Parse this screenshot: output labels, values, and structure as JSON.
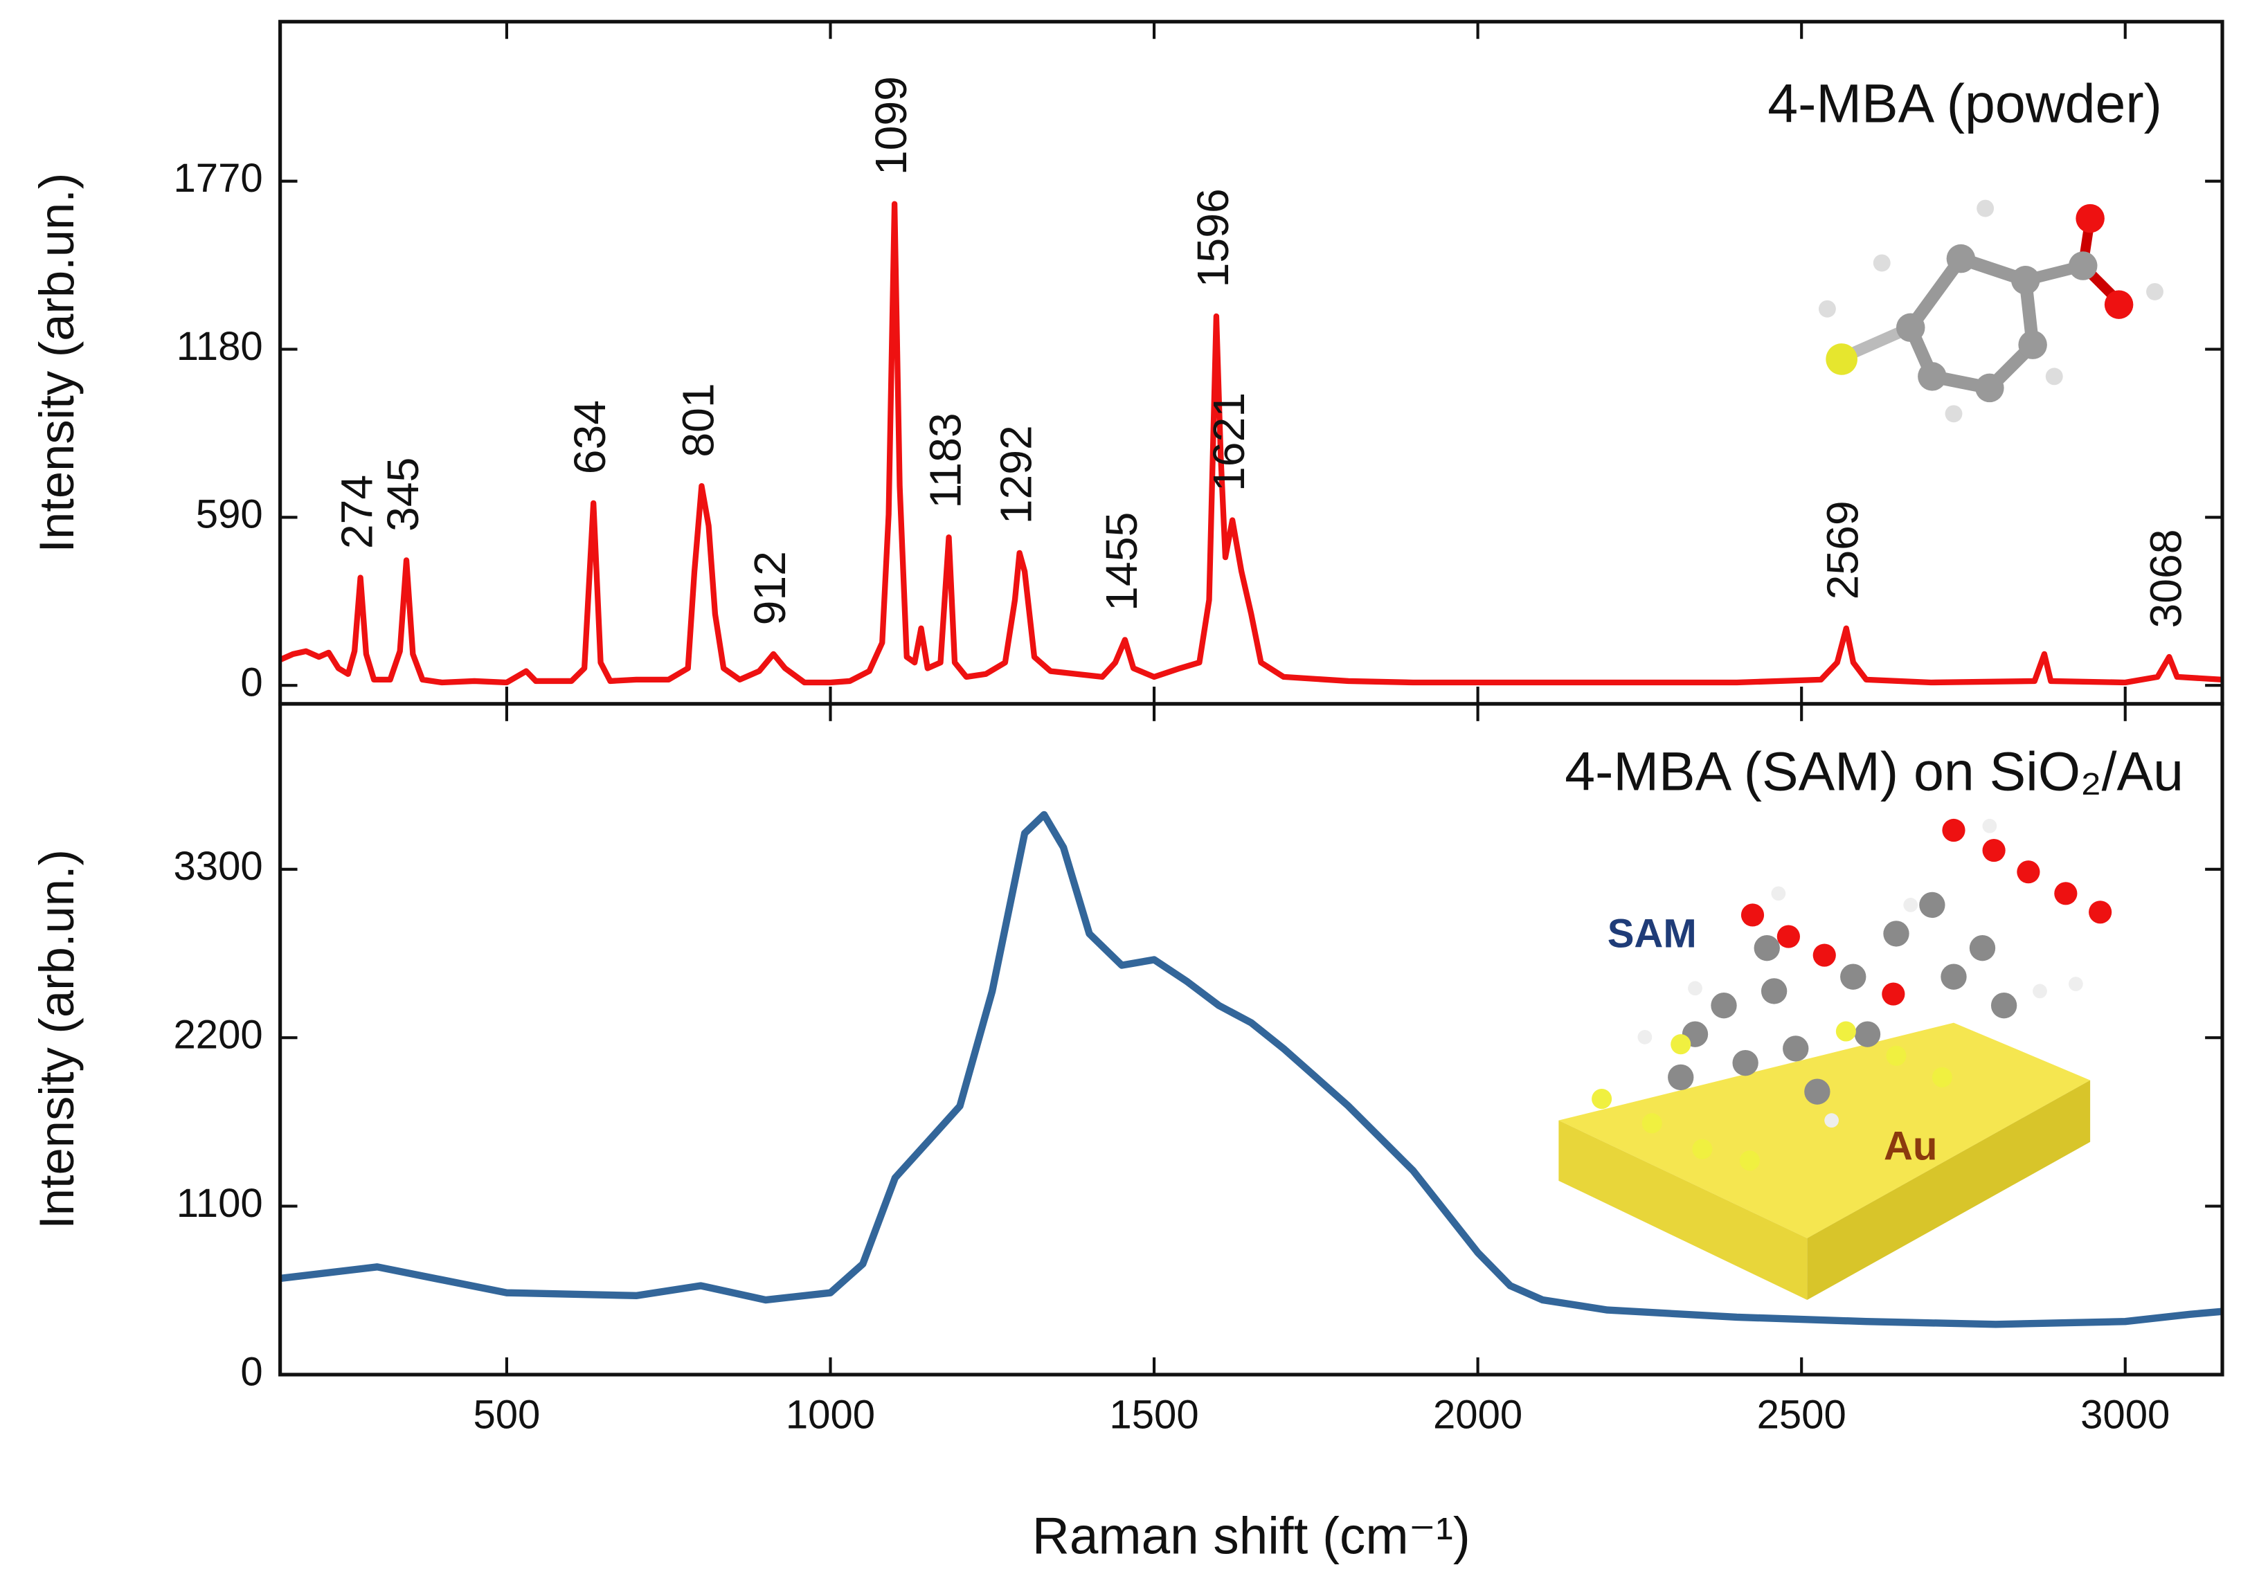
{
  "chart_data": [
    {
      "type": "line",
      "title": "4-MBA (powder)",
      "y_label": "Intensity (arb.un.)",
      "xlim": [
        150,
        3150
      ],
      "ylim": [
        -65,
        2330
      ],
      "yticks": [
        0,
        590,
        1180,
        1770
      ],
      "series": [
        {
          "color": "#ee1111",
          "x": [
            150,
            170,
            190,
            210,
            225,
            240,
            255,
            265,
            274,
            283,
            295,
            320,
            335,
            345,
            355,
            370,
            400,
            450,
            500,
            530,
            545,
            600,
            620,
            634,
            645,
            660,
            700,
            750,
            780,
            790,
            801,
            812,
            822,
            835,
            860,
            890,
            912,
            930,
            960,
            1000,
            1030,
            1060,
            1080,
            1090,
            1099,
            1107,
            1118,
            1130,
            1140,
            1150,
            1170,
            1183,
            1192,
            1210,
            1240,
            1270,
            1285,
            1292,
            1300,
            1315,
            1340,
            1380,
            1420,
            1440,
            1455,
            1468,
            1500,
            1540,
            1570,
            1585,
            1596,
            1603,
            1610,
            1621,
            1635,
            1650,
            1665,
            1700,
            1800,
            1900,
            2000,
            2200,
            2400,
            2530,
            2555,
            2569,
            2580,
            2600,
            2700,
            2860,
            2875,
            2885,
            3000,
            3050,
            3068,
            3080,
            3150
          ],
          "values": [
            90,
            110,
            120,
            100,
            115,
            60,
            40,
            120,
            378,
            110,
            20,
            20,
            120,
            439,
            110,
            20,
            10,
            15,
            10,
            50,
            15,
            15,
            60,
            640,
            80,
            15,
            20,
            20,
            60,
            400,
            700,
            560,
            250,
            60,
            20,
            50,
            110,
            60,
            10,
            10,
            15,
            50,
            150,
            600,
            1690,
            700,
            100,
            80,
            200,
            60,
            80,
            520,
            80,
            30,
            40,
            80,
            300,
            465,
            400,
            100,
            50,
            40,
            30,
            80,
            160,
            60,
            30,
            60,
            80,
            300,
            1296,
            800,
            450,
            580,
            400,
            250,
            80,
            30,
            15,
            10,
            10,
            10,
            10,
            20,
            80,
            200,
            80,
            20,
            10,
            15,
            110,
            15,
            10,
            30,
            100,
            30,
            20
          ]
        }
      ],
      "annotations": [
        {
          "text": "274",
          "x": 274
        },
        {
          "text": "345",
          "x": 345
        },
        {
          "text": "634",
          "x": 634
        },
        {
          "text": "801",
          "x": 801
        },
        {
          "text": "912",
          "x": 912
        },
        {
          "text": "1099",
          "x": 1099
        },
        {
          "text": "1183",
          "x": 1183
        },
        {
          "text": "1292",
          "x": 1292
        },
        {
          "text": "1455",
          "x": 1455
        },
        {
          "text": "1596",
          "x": 1596
        },
        {
          "text": "1621",
          "x": 1621
        },
        {
          "text": "2569",
          "x": 2569
        },
        {
          "text": "3068",
          "x": 3068
        }
      ]
    },
    {
      "type": "line",
      "title": "4-MBA (SAM) on SiO₂/Au",
      "y_label": "Intensity (arb.un.)",
      "x_label": "Raman shift (cm⁻¹)",
      "xlim": [
        150,
        3150
      ],
      "xticks": [
        500,
        1000,
        1500,
        2000,
        2500,
        3000
      ],
      "ylim": [
        0,
        4380
      ],
      "yticks": [
        0,
        1100,
        2200,
        3300
      ],
      "series": [
        {
          "color": "#33669a",
          "x": [
            150,
            300,
            500,
            700,
            800,
            900,
            1000,
            1050,
            1100,
            1150,
            1200,
            1250,
            1300,
            1330,
            1360,
            1400,
            1450,
            1500,
            1550,
            1600,
            1650,
            1700,
            1750,
            1800,
            1900,
            2000,
            2050,
            2100,
            2200,
            2400,
            2600,
            2800,
            3000,
            3100,
            3150
          ],
          "values": [
            628,
            703,
            535,
            516,
            581,
            488,
            535,
            722,
            1285,
            1519,
            1754,
            2504,
            3535,
            3657,
            3442,
            2879,
            2673,
            2710,
            2570,
            2410,
            2298,
            2129,
            1941,
            1754,
            1332,
            797,
            581,
            488,
            422,
            375,
            347,
            328,
            347,
            394,
            413
          ]
        }
      ],
      "annotations": [
        {
          "text": "SAM"
        },
        {
          "text": "Au"
        }
      ]
    }
  ]
}
